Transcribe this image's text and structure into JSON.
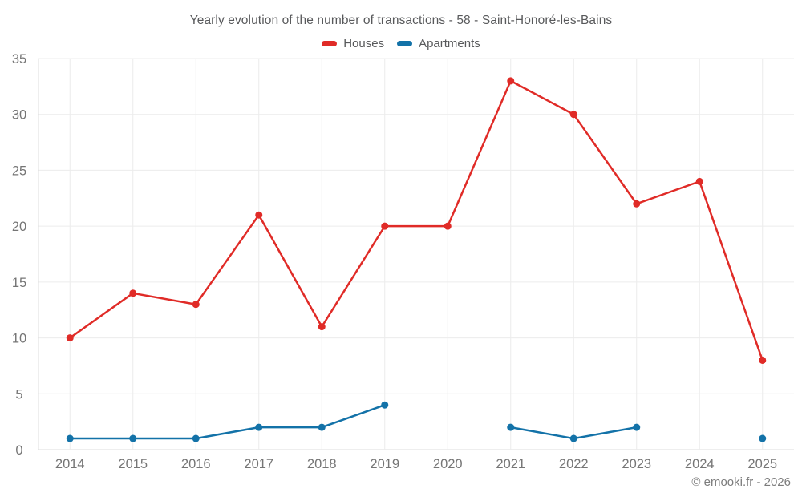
{
  "header": {
    "title": "Yearly evolution of the number of transactions - 58 - Saint-Honoré-les-Bains"
  },
  "legend": {
    "items": [
      {
        "label": "Houses",
        "color": "#e02b27"
      },
      {
        "label": "Apartments",
        "color": "#1372a8"
      }
    ]
  },
  "footer": {
    "attribution": "© emooki.fr - 2026"
  },
  "chart_data": {
    "type": "line",
    "title": "Yearly evolution of the number of transactions - 58 - Saint-Honoré-les-Bains",
    "categories": [
      "2014",
      "2015",
      "2016",
      "2017",
      "2018",
      "2019",
      "2020",
      "2021",
      "2022",
      "2023",
      "2024",
      "2025"
    ],
    "series": [
      {
        "name": "Houses",
        "color": "#e02b27",
        "values": [
          10,
          14,
          13,
          21,
          11,
          20,
          20,
          33,
          30,
          22,
          24,
          8
        ]
      },
      {
        "name": "Apartments",
        "color": "#1372a8",
        "values": [
          1,
          1,
          1,
          2,
          2,
          4,
          null,
          2,
          1,
          2,
          null,
          1
        ]
      }
    ],
    "xlabel": "",
    "ylabel": "",
    "ylim": [
      0,
      35
    ],
    "ytick_step": 5,
    "grid": true,
    "legend_position": "top",
    "marker_radius": 4.5,
    "line_width": 2.5
  },
  "colors": {
    "grid": "#ececec",
    "axis": "#dcdcdc",
    "tick_label": "#757575",
    "title": "#58595b",
    "background": "#ffffff"
  }
}
